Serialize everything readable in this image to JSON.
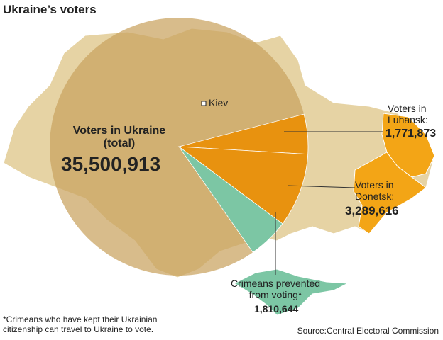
{
  "chart_data": {
    "type": "pie",
    "title": "Ukraine’s voters",
    "total": {
      "value": 35500913,
      "label": "35,500,913",
      "name": "Voters in Ukraine (total)",
      "color": "#c9a25e"
    },
    "categories": [
      "Voters in Luhansk:",
      "Voters in Donetsk:",
      "Crimeans prevented from voting*"
    ],
    "values": [
      1771873,
      3289616,
      1810644
    ],
    "value_labels": [
      "1,771,873",
      "3,289,616",
      "1,810,644"
    ],
    "colors": [
      "#e8920f",
      "#e8920f",
      "#7cc6a4"
    ],
    "annotations": [
      "Kiev"
    ],
    "footnote": "*Crimeans who have kept their Ukrainian citizenship can travel to Ukraine to vote.",
    "source": "Source:Central Electoral Commission"
  }
}
